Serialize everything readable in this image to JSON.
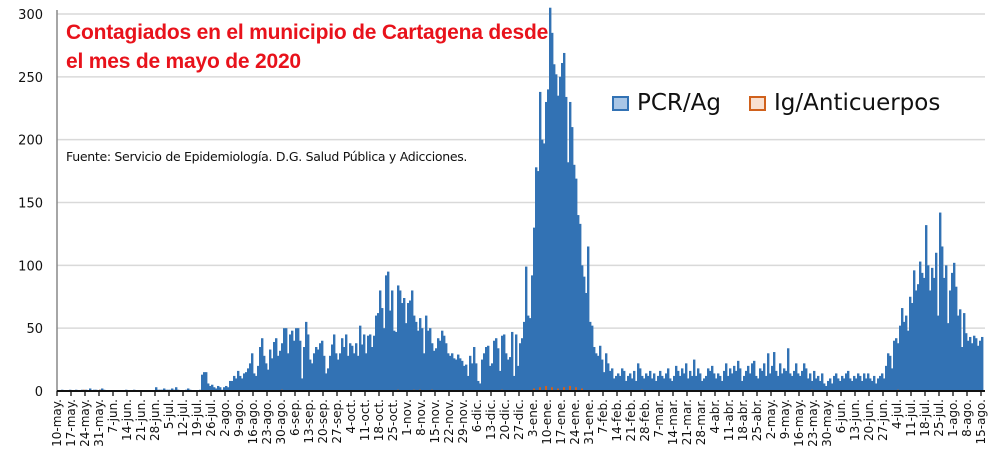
{
  "chart_data": {
    "type": "bar",
    "title_line1": "Contagiados en el municipio de Cartagena desde",
    "title_line2": "el mes de mayo de 2020",
    "source": "Fuente: Servicio de Epidemiología. D.G. Salud Pública y Adicciones.",
    "xlabel": "",
    "ylabel": "",
    "ylim": [
      0,
      300
    ],
    "yticks": [
      0,
      50,
      100,
      150,
      200,
      250,
      300
    ],
    "grid": true,
    "legend_placement": "top-right",
    "start_date": "10-may-2020",
    "x_tick_labels": [
      "10-may.",
      "17-may.",
      "24-may.",
      "31-may.",
      "7-jun.",
      "14-jun.",
      "21-jun.",
      "28-jun.",
      "5-jul.",
      "12-jul.",
      "19-jul.",
      "26-jul.",
      "2-ago.",
      "9-ago.",
      "16-ago.",
      "23-ago.",
      "30-ago.",
      "6-sep.",
      "13-sep.",
      "20-sep.",
      "27-sep.",
      "4-oct.",
      "11-oct.",
      "18-oct.",
      "25-oct.",
      "1-nov.",
      "8-nov.",
      "15-nov.",
      "22-nov.",
      "29-nov.",
      "6-dic.",
      "13-dic.",
      "20-dic.",
      "27-dic.",
      "3-ene.",
      "10-ene.",
      "17-ene.",
      "24-ene.",
      "31-ene.",
      "7-feb.",
      "14-feb.",
      "21-feb.",
      "28-feb.",
      "7-mar.",
      "14-mar.",
      "21-mar.",
      "28-mar.",
      "4-abr.",
      "11-abr.",
      "18-abr.",
      "25-abr.",
      "2-may.",
      "9-may.",
      "16-may.",
      "23-may.",
      "30-may.",
      "6-jun.",
      "13-jun.",
      "20-jun.",
      "27-jun.",
      "4-jul.",
      "11-jul.",
      "18-jul.",
      "25-jul.",
      "1-ago.",
      "8-ago.",
      "15-ago."
    ],
    "series": [
      {
        "name": "PCR/Ag",
        "color": "#3272b4",
        "fill_legend": "#a9c6e6",
        "values": [
          0,
          0,
          1,
          0,
          0,
          0,
          1,
          0,
          0,
          1,
          0,
          0,
          1,
          0,
          1,
          0,
          2,
          0,
          1,
          1,
          0,
          1,
          2,
          1,
          0,
          0,
          0,
          0,
          0,
          0,
          0,
          0,
          0,
          0,
          1,
          0,
          0,
          0,
          1,
          0,
          0,
          0,
          0,
          0,
          0,
          0,
          0,
          0,
          0,
          3,
          1,
          1,
          1,
          2,
          1,
          1,
          1,
          2,
          1,
          3,
          1,
          0,
          0,
          0,
          1,
          2,
          1,
          0,
          0,
          0,
          0,
          1,
          13,
          15,
          15,
          6,
          4,
          5,
          3,
          2,
          4,
          3,
          1,
          3,
          4,
          3,
          8,
          8,
          12,
          10,
          16,
          12,
          10,
          14,
          15,
          18,
          22,
          30,
          14,
          12,
          20,
          35,
          42,
          28,
          22,
          17,
          33,
          26,
          39,
          42,
          28,
          32,
          38,
          50,
          50,
          30,
          45,
          48,
          40,
          50,
          50,
          40,
          10,
          35,
          55,
          45,
          25,
          22,
          30,
          35,
          33,
          38,
          40,
          28,
          14,
          18,
          28,
          37,
          45,
          30,
          25,
          30,
          42,
          35,
          45,
          28,
          38,
          36,
          30,
          38,
          28,
          52,
          37,
          45,
          30,
          44,
          45,
          35,
          44,
          60,
          62,
          80,
          66,
          50,
          92,
          95,
          64,
          80,
          48,
          47,
          84,
          80,
          70,
          74,
          54,
          70,
          72,
          80,
          60,
          55,
          48,
          58,
          50,
          30,
          60,
          48,
          50,
          38,
          32,
          34,
          42,
          40,
          48,
          44,
          38,
          30,
          28,
          30,
          26,
          25,
          29,
          26,
          24,
          20,
          21,
          12,
          28,
          22,
          35,
          22,
          8,
          6,
          25,
          30,
          35,
          36,
          20,
          22,
          40,
          42,
          34,
          16,
          44,
          45,
          30,
          25,
          27,
          47,
          12,
          45,
          20,
          38,
          42,
          55,
          99,
          60,
          58,
          92,
          130,
          178,
          175,
          238,
          200,
          197,
          230,
          240,
          305,
          285,
          260,
          252,
          235,
          250,
          261,
          269,
          234,
          182,
          230,
          210,
          180,
          169,
          140,
          133,
          100,
          91,
          78,
          115,
          55,
          52,
          35,
          30,
          28,
          36,
          25,
          15,
          30,
          22,
          16,
          18,
          10,
          12,
          14,
          12,
          18,
          16,
          8,
          12,
          14,
          10,
          16,
          8,
          22,
          18,
          12,
          10,
          14,
          12,
          16,
          10,
          14,
          8,
          12,
          16,
          12,
          10,
          14,
          18,
          10,
          8,
          12,
          20,
          16,
          12,
          18,
          14,
          22,
          10,
          16,
          12,
          25,
          12,
          18,
          14,
          8,
          10,
          12,
          18,
          16,
          20,
          14,
          10,
          14,
          12,
          8,
          16,
          22,
          12,
          18,
          14,
          20,
          16,
          24,
          18,
          8,
          12,
          16,
          20,
          14,
          22,
          24,
          12,
          10,
          18,
          16,
          22,
          12,
          30,
          14,
          20,
          31,
          16,
          12,
          22,
          14,
          18,
          16,
          34,
          14,
          12,
          16,
          22,
          14,
          12,
          16,
          22,
          18,
          10,
          14,
          8,
          16,
          10,
          12,
          8,
          14,
          6,
          4,
          8,
          10,
          6,
          12,
          14,
          10,
          8,
          12,
          10,
          14,
          16,
          10,
          8,
          12,
          10,
          14,
          12,
          8,
          14,
          10,
          14,
          10,
          8,
          12,
          6,
          10,
          12,
          14,
          10,
          20,
          30,
          28,
          18,
          40,
          42,
          38,
          52,
          66,
          55,
          60,
          48,
          75,
          70,
          96,
          80,
          85,
          103,
          94,
          90,
          132,
          100,
          80,
          98,
          90,
          110,
          60,
          142,
          115,
          90,
          100,
          54,
          80,
          94,
          102,
          83,
          60,
          65,
          35,
          62,
          46,
          40,
          43,
          38,
          44,
          42,
          36,
          40,
          43
        ]
      },
      {
        "name": "Ig/Anticuerpos",
        "color": "#d0611c",
        "fill_legend": "#f8e0d0",
        "day_index": [
          13,
          21,
          112,
          170,
          178,
          181,
          187,
          222,
          238,
          241,
          244,
          247,
          250,
          253,
          256,
          259,
          262,
          292,
          377,
          420
        ],
        "values": [
          1,
          1,
          1,
          1,
          1,
          1,
          1,
          1,
          2,
          3,
          4,
          3,
          2,
          3,
          4,
          3,
          2,
          1,
          1,
          1
        ]
      }
    ]
  }
}
